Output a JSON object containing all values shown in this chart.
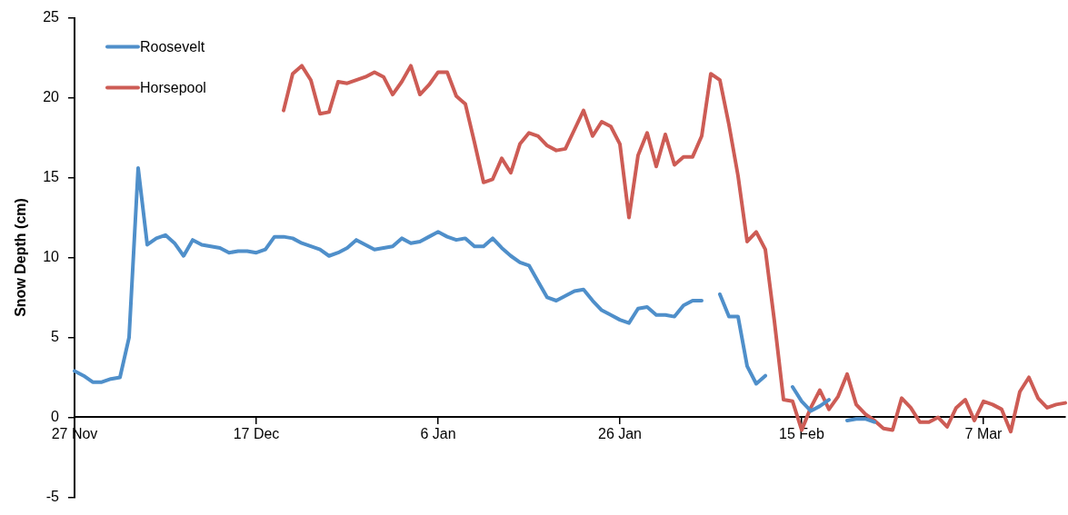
{
  "chart_data": {
    "type": "line",
    "ylabel": "Snow Depth (cm)",
    "categories": [
      "27 Nov",
      null,
      null,
      null,
      null,
      null,
      null,
      null,
      null,
      null,
      null,
      null,
      null,
      null,
      null,
      null,
      null,
      null,
      null,
      null,
      "17 Dec",
      null,
      null,
      null,
      null,
      null,
      null,
      null,
      null,
      null,
      null,
      null,
      null,
      null,
      null,
      null,
      null,
      null,
      null,
      null,
      "6 Jan",
      null,
      null,
      null,
      null,
      null,
      null,
      null,
      null,
      null,
      null,
      null,
      null,
      null,
      null,
      null,
      null,
      null,
      null,
      null,
      "26 Jan",
      null,
      null,
      null,
      null,
      null,
      null,
      null,
      null,
      null,
      null,
      null,
      null,
      null,
      null,
      null,
      null,
      null,
      null,
      null,
      "15 Feb",
      null,
      null,
      null,
      null,
      null,
      null,
      null,
      null,
      null,
      null,
      null,
      null,
      null,
      null,
      null,
      null,
      null,
      null,
      null,
      "7 Mar",
      null,
      null,
      null,
      null,
      null,
      null,
      null,
      null,
      null
    ],
    "series": [
      {
        "name": "Roosevelt",
        "color": "#4f8fca",
        "values": [
          2.9,
          2.6,
          2.2,
          2.2,
          2.4,
          2.5,
          5.0,
          15.6,
          10.8,
          11.2,
          11.4,
          10.9,
          10.1,
          11.1,
          10.8,
          10.7,
          10.6,
          10.3,
          10.4,
          10.4,
          10.3,
          10.5,
          11.3,
          11.3,
          11.2,
          10.9,
          10.7,
          10.5,
          10.1,
          10.3,
          10.6,
          11.1,
          10.8,
          10.5,
          10.6,
          10.7,
          11.2,
          10.9,
          11.0,
          11.3,
          11.6,
          11.3,
          11.1,
          11.2,
          10.7,
          10.7,
          11.2,
          10.6,
          10.1,
          9.7,
          9.5,
          8.5,
          7.5,
          7.3,
          7.6,
          7.9,
          8.0,
          7.3,
          6.7,
          6.4,
          6.1,
          5.9,
          6.8,
          6.9,
          6.4,
          6.4,
          6.3,
          7.0,
          7.3,
          7.3,
          null,
          7.7,
          6.3,
          6.3,
          3.2,
          2.1,
          2.6,
          null,
          null,
          1.9,
          1.0,
          0.4,
          0.7,
          1.1,
          null,
          -0.2,
          -0.1,
          -0.1,
          -0.3,
          null,
          null,
          null,
          null,
          null,
          null,
          null,
          null,
          null,
          null,
          null,
          null,
          null,
          null,
          null,
          null,
          null,
          null,
          null,
          null,
          null
        ]
      },
      {
        "name": "Horsepool",
        "color": "#cd5c55",
        "values": [
          null,
          null,
          null,
          null,
          null,
          null,
          null,
          null,
          null,
          null,
          null,
          null,
          null,
          null,
          null,
          null,
          null,
          null,
          null,
          null,
          null,
          null,
          null,
          19.2,
          21.5,
          22.0,
          21.1,
          19.0,
          19.1,
          21.0,
          20.9,
          21.1,
          21.3,
          21.6,
          21.3,
          20.2,
          21.0,
          22.0,
          20.2,
          20.8,
          21.6,
          21.6,
          20.1,
          19.6,
          17.2,
          14.7,
          14.9,
          16.2,
          15.3,
          17.1,
          17.8,
          17.6,
          17.0,
          16.7,
          16.8,
          18.0,
          19.2,
          17.6,
          18.5,
          18.2,
          17.1,
          12.5,
          16.4,
          17.8,
          15.7,
          17.7,
          15.8,
          16.3,
          16.3,
          17.6,
          21.5,
          21.1,
          18.3,
          15.1,
          11.0,
          11.6,
          10.5,
          6.0,
          1.1,
          1.0,
          -0.8,
          0.6,
          1.7,
          0.5,
          1.3,
          2.7,
          0.8,
          0.2,
          -0.2,
          -0.7,
          -0.8,
          1.2,
          0.6,
          -0.3,
          -0.3,
          0.0,
          -0.6,
          0.6,
          1.1,
          -0.2,
          1.0,
          0.8,
          0.5,
          -0.9,
          1.6,
          2.5,
          1.2,
          0.6,
          0.8,
          0.9
        ]
      }
    ],
    "ylim": [
      -5,
      25
    ],
    "yticks": [
      -5,
      0,
      5,
      10,
      15,
      20,
      25
    ],
    "grid": false,
    "legend": "top left",
    "marker": "none",
    "line_style": "solid"
  }
}
